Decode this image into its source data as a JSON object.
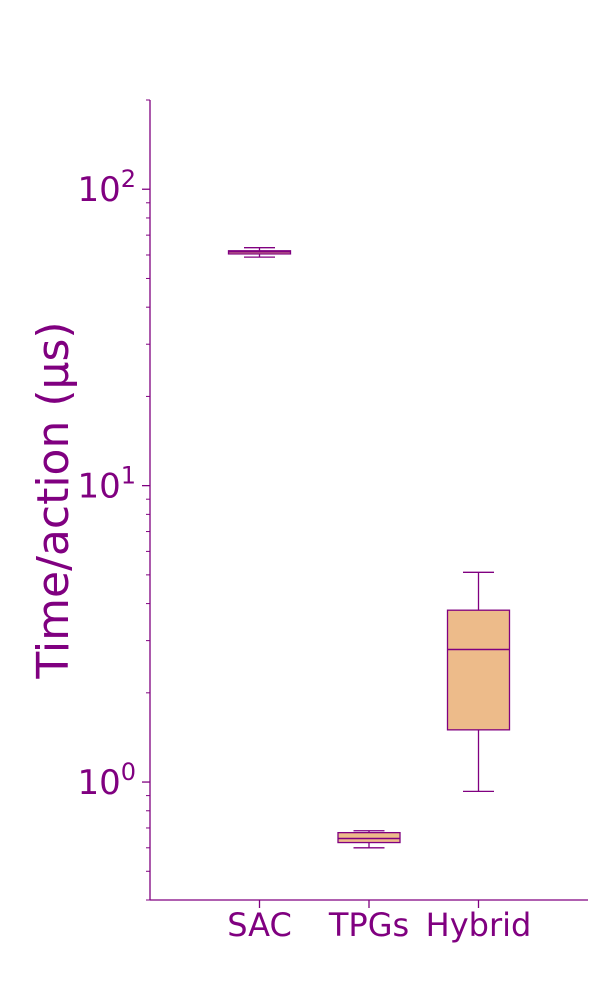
{
  "chart_data": {
    "type": "box",
    "title": "",
    "xlabel": "",
    "ylabel": "Time/action (μs)",
    "yscale": "log",
    "ylim": [
      0.4,
      200
    ],
    "yticks": [
      {
        "value": 1,
        "base": "10",
        "exp": "0"
      },
      {
        "value": 10,
        "base": "10",
        "exp": "1"
      },
      {
        "value": 100,
        "base": "10",
        "exp": "2"
      }
    ],
    "categories": [
      "SAC",
      "TPGs",
      "Hybrid"
    ],
    "boxes": [
      {
        "category": "SAC",
        "whisker_low": 59.0,
        "q1": 60.5,
        "median": 61.5,
        "q3": 62.0,
        "whisker_high": 63.5
      },
      {
        "category": "TPGs",
        "whisker_low": 0.6,
        "q1": 0.625,
        "median": 0.645,
        "q3": 0.675,
        "whisker_high": 0.685
      },
      {
        "category": "Hybrid",
        "whisker_low": 0.93,
        "q1": 1.5,
        "median": 2.8,
        "q3": 3.8,
        "whisker_high": 5.1
      }
    ],
    "grid": false,
    "legend": "none",
    "colors": {
      "text": "#800080",
      "box_fill": "#edbb8a",
      "box_edge": "#800080",
      "axis": "#800080"
    }
  }
}
